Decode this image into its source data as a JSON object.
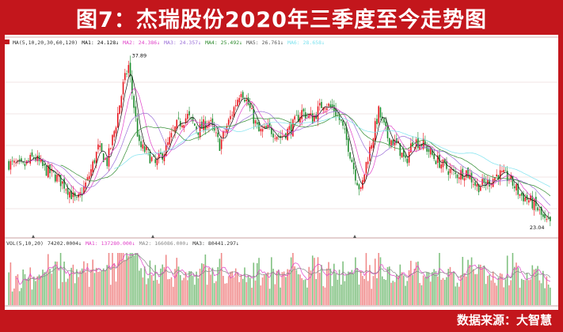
{
  "title": "图7：杰瑞股份2020年三季度至今走势图",
  "source": "数据来源：大智慧",
  "colors": {
    "frame": "#c3161c",
    "up": "#e8141c",
    "down": "#1a8a2a",
    "ma5": "#111111",
    "ma10": "#e040c8",
    "ma20": "#9b6fd8",
    "ma30": "#2e8b2e",
    "ma60": "#7fe3ef",
    "vol_up": "#f08a8a",
    "vol_down": "#7fc07f",
    "vol_ma": "#e040c8"
  },
  "price_panel": {
    "legend_items": [
      {
        "label": "MA(5,10,20,30,60,120)",
        "color": "#333333"
      },
      {
        "label": "MA1: 24.128↓",
        "color": "#111111"
      },
      {
        "label": "MA2: 24.386↓",
        "color": "#e040c8"
      },
      {
        "label": "MA3: 24.357↓",
        "color": "#9b6fd8"
      },
      {
        "label": "MA4: 25.492↓",
        "color": "#2e8b2e"
      },
      {
        "label": "MA5: 26.761↓",
        "color": "#555555"
      },
      {
        "label": "MA6: 28.658↓",
        "color": "#7fe3ef"
      }
    ],
    "high_label": "37.89",
    "low_label": "23.04"
  },
  "volume_panel": {
    "legend_items": [
      {
        "label": "VOL(5,10,20)",
        "color": "#333333"
      },
      {
        "label": "74202.0004↓",
        "color": "#333333"
      },
      {
        "label": "MA1: 137280.000↓",
        "color": "#e040c8"
      },
      {
        "label": "MA2: 166086.000↓",
        "color": "#888888"
      },
      {
        "label": "MA3: 80441.297↓",
        "color": "#333333"
      }
    ]
  },
  "chart_data": {
    "type": "candlestick",
    "title": "图7：杰瑞股份2020年三季度至今走势图",
    "series": [
      {
        "name": "MA1",
        "last": 24.128
      },
      {
        "name": "MA2",
        "last": 24.386
      },
      {
        "name": "MA3",
        "last": 24.357
      },
      {
        "name": "MA4",
        "last": 25.492
      },
      {
        "name": "MA5",
        "last": 26.761
      },
      {
        "name": "MA6",
        "last": 28.658
      }
    ],
    "close_path": [
      {
        "i": 0,
        "v": 28.5
      },
      {
        "i": 8,
        "v": 28.2
      },
      {
        "i": 14,
        "v": 29.1
      },
      {
        "i": 20,
        "v": 28.0
      },
      {
        "i": 26,
        "v": 27.4
      },
      {
        "i": 32,
        "v": 26.5
      },
      {
        "i": 38,
        "v": 25.1
      },
      {
        "i": 44,
        "v": 27.0
      },
      {
        "i": 50,
        "v": 29.8
      },
      {
        "i": 55,
        "v": 28.6
      },
      {
        "i": 60,
        "v": 32.0
      },
      {
        "i": 64,
        "v": 35.3
      },
      {
        "i": 67,
        "v": 37.0
      },
      {
        "i": 70,
        "v": 33.5
      },
      {
        "i": 73,
        "v": 30.0
      },
      {
        "i": 77,
        "v": 29.5
      },
      {
        "i": 82,
        "v": 28.4
      },
      {
        "i": 88,
        "v": 29.8
      },
      {
        "i": 94,
        "v": 31.8
      },
      {
        "i": 100,
        "v": 32.6
      },
      {
        "i": 106,
        "v": 31.4
      },
      {
        "i": 112,
        "v": 32.2
      },
      {
        "i": 118,
        "v": 30.1
      },
      {
        "i": 124,
        "v": 32.5
      },
      {
        "i": 130,
        "v": 35.0
      },
      {
        "i": 134,
        "v": 33.6
      },
      {
        "i": 140,
        "v": 31.2
      },
      {
        "i": 146,
        "v": 31.5
      },
      {
        "i": 152,
        "v": 30.8
      },
      {
        "i": 158,
        "v": 31.6
      },
      {
        "i": 164,
        "v": 33.0
      },
      {
        "i": 170,
        "v": 32.4
      },
      {
        "i": 176,
        "v": 33.8
      },
      {
        "i": 182,
        "v": 33.2
      },
      {
        "i": 186,
        "v": 32.0
      },
      {
        "i": 190,
        "v": 30.0
      },
      {
        "i": 194,
        "v": 27.5
      },
      {
        "i": 197,
        "v": 26.0
      },
      {
        "i": 200,
        "v": 28.5
      },
      {
        "i": 204,
        "v": 31.0
      },
      {
        "i": 207,
        "v": 33.0
      },
      {
        "i": 212,
        "v": 30.8
      },
      {
        "i": 218,
        "v": 30.0
      },
      {
        "i": 222,
        "v": 28.5
      },
      {
        "i": 226,
        "v": 30.5
      },
      {
        "i": 232,
        "v": 30.2
      },
      {
        "i": 238,
        "v": 29.0
      },
      {
        "i": 244,
        "v": 28.2
      },
      {
        "i": 250,
        "v": 27.5
      },
      {
        "i": 256,
        "v": 27.8
      },
      {
        "i": 262,
        "v": 26.5
      },
      {
        "i": 268,
        "v": 26.8
      },
      {
        "i": 274,
        "v": 27.6
      },
      {
        "i": 280,
        "v": 27.2
      },
      {
        "i": 286,
        "v": 25.8
      },
      {
        "i": 292,
        "v": 25.2
      },
      {
        "i": 296,
        "v": 24.5
      },
      {
        "i": 300,
        "v": 23.4
      },
      {
        "i": 303,
        "v": 23.2
      }
    ],
    "high": 37.89,
    "low": 23.04,
    "ylim": [
      22.5,
      38.6
    ],
    "n_candles": 304,
    "volume": {
      "series": [
        {
          "name": "MA1",
          "last": 137280.0
        },
        {
          "name": "MA2",
          "last": 166086.0
        },
        {
          "name": "MA3",
          "last": 80441.297
        }
      ]
    }
  }
}
